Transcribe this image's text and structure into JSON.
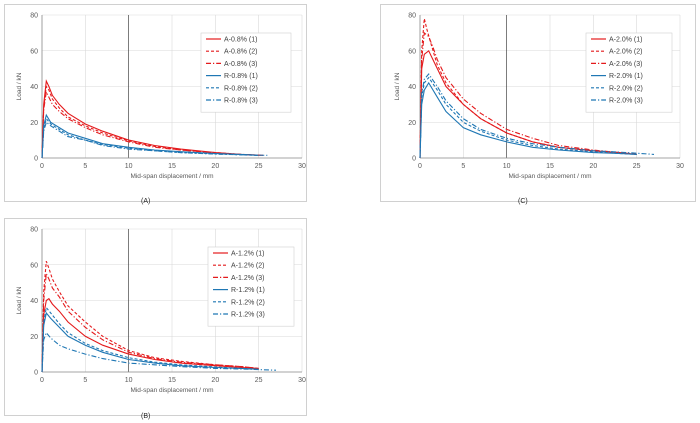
{
  "chart_data": [
    {
      "type": "line",
      "panel_label": "(A)",
      "xlabel": "Mid-span displacement / mm",
      "ylabel": "Load / kN",
      "xlim": [
        0,
        30
      ],
      "ylim": [
        0,
        80
      ],
      "xticks": [
        0,
        5,
        10,
        15,
        20,
        25,
        30
      ],
      "yticks": [
        0,
        20,
        40,
        60,
        80
      ],
      "legend_position": "top-right",
      "series": [
        {
          "name": "A-0.8% (1)",
          "color": "#e41a1c",
          "dash": "solid",
          "x": [
            0,
            0.2,
            0.5,
            0.8,
            1.2,
            2,
            3,
            5,
            7,
            10,
            13,
            16,
            20,
            23,
            25.5
          ],
          "y": [
            0,
            30,
            43,
            40,
            35,
            30,
            25,
            19,
            15,
            10,
            7,
            5,
            3,
            2,
            1.5
          ]
        },
        {
          "name": "A-0.8% (2)",
          "color": "#e41a1c",
          "dash": "dash",
          "x": [
            0,
            0.2,
            0.5,
            0.8,
            1.2,
            2,
            3,
            5,
            7,
            10,
            13,
            16,
            20,
            23,
            25.5
          ],
          "y": [
            0,
            28,
            40,
            38,
            33,
            28,
            23,
            18,
            14,
            9.5,
            6.5,
            4.5,
            3,
            2,
            1.5
          ]
        },
        {
          "name": "A-0.8% (3)",
          "color": "#e41a1c",
          "dash": "dashdot",
          "x": [
            0,
            0.2,
            0.5,
            0.8,
            1.2,
            2,
            3,
            5,
            7,
            10,
            13,
            16,
            20,
            23,
            25
          ],
          "y": [
            0,
            27,
            37,
            34,
            30,
            26,
            22,
            17,
            13,
            9,
            6,
            4.5,
            2.8,
            2,
            1.5
          ]
        },
        {
          "name": "R-0.8% (1)",
          "color": "#1f77b4",
          "dash": "solid",
          "x": [
            0,
            0.2,
            0.5,
            1,
            2,
            3,
            5,
            7,
            10,
            13,
            16,
            20,
            23,
            25
          ],
          "y": [
            0,
            18,
            24,
            20,
            17,
            14,
            11,
            8,
            6,
            4.5,
            3.5,
            2.5,
            2,
            1.5
          ]
        },
        {
          "name": "R-0.8% (2)",
          "color": "#1f77b4",
          "dash": "dash",
          "x": [
            0,
            0.2,
            0.5,
            1,
            2,
            3,
            5,
            7,
            10,
            13,
            16,
            20,
            23,
            25
          ],
          "y": [
            0,
            16,
            22,
            19,
            16,
            13,
            10,
            7.5,
            5.5,
            4,
            3,
            2.3,
            1.8,
            1.4
          ]
        },
        {
          "name": "R-0.8% (3)",
          "color": "#1f77b4",
          "dash": "dashdot",
          "x": [
            0,
            0.2,
            0.5,
            1,
            2,
            3,
            5,
            7,
            10,
            13,
            16,
            20,
            23,
            26
          ],
          "y": [
            0,
            15,
            20,
            18,
            15,
            12,
            10,
            7,
            5,
            4,
            3,
            2.2,
            1.8,
            1.5
          ]
        }
      ]
    },
    {
      "type": "line",
      "panel_label": "(C)",
      "xlabel": "Mid-span displacement / mm",
      "ylabel": "Load / kN",
      "xlim": [
        0,
        30
      ],
      "ylim": [
        0,
        80
      ],
      "xticks": [
        0,
        5,
        10,
        15,
        20,
        25,
        30
      ],
      "yticks": [
        0,
        20,
        40,
        60,
        80
      ],
      "legend_position": "top-right",
      "series": [
        {
          "name": "A-2.0% (1)",
          "color": "#e41a1c",
          "dash": "solid",
          "x": [
            0,
            0.2,
            0.5,
            1,
            1.5,
            2,
            3,
            5,
            7,
            10,
            13,
            16,
            20,
            23,
            25
          ],
          "y": [
            0,
            50,
            58,
            60,
            55,
            50,
            40,
            30,
            22,
            14,
            9,
            6,
            4,
            3,
            2
          ]
        },
        {
          "name": "A-2.0% (2)",
          "color": "#e41a1c",
          "dash": "dash",
          "x": [
            0,
            0.2,
            0.5,
            0.8,
            1.2,
            2,
            3,
            5,
            7,
            10,
            13,
            16,
            20,
            23,
            25
          ],
          "y": [
            0,
            60,
            78,
            72,
            65,
            52,
            42,
            30,
            22,
            14,
            9,
            6,
            4,
            3,
            2
          ]
        },
        {
          "name": "A-2.0% (3)",
          "color": "#e41a1c",
          "dash": "dashdot",
          "x": [
            0,
            0.2,
            0.5,
            1,
            1.5,
            2,
            3,
            5,
            7,
            10,
            13,
            16,
            20,
            23,
            25
          ],
          "y": [
            0,
            55,
            70,
            68,
            62,
            55,
            45,
            33,
            25,
            16,
            11,
            7,
            4.5,
            3,
            2
          ]
        },
        {
          "name": "R-2.0% (1)",
          "color": "#1f77b4",
          "dash": "solid",
          "x": [
            0,
            0.2,
            0.5,
            1,
            2,
            3,
            5,
            7,
            10,
            13,
            16,
            20,
            23,
            25
          ],
          "y": [
            0,
            30,
            38,
            42,
            34,
            26,
            17,
            13,
            9,
            6,
            4.5,
            3,
            2.5,
            2
          ]
        },
        {
          "name": "R-2.0% (2)",
          "color": "#1f77b4",
          "dash": "dash",
          "x": [
            0,
            0.2,
            0.5,
            1,
            2,
            3,
            5,
            7,
            10,
            13,
            16,
            20,
            23,
            25
          ],
          "y": [
            0,
            34,
            42,
            45,
            38,
            30,
            20,
            15,
            10,
            7,
            5,
            3.5,
            2.5,
            2
          ]
        },
        {
          "name": "R-2.0% (3)",
          "color": "#1f77b4",
          "dash": "dashdot",
          "x": [
            0,
            0.2,
            0.5,
            1,
            2,
            3,
            5,
            7,
            10,
            13,
            16,
            20,
            24,
            27
          ],
          "y": [
            0,
            36,
            44,
            47,
            40,
            32,
            22,
            16,
            11,
            8,
            6,
            4,
            3,
            2
          ]
        }
      ]
    },
    {
      "type": "line",
      "panel_label": "(B)",
      "xlabel": "Mid-span displacement / mm",
      "ylabel": "Load / kN",
      "xlim": [
        0,
        30
      ],
      "ylim": [
        0,
        80
      ],
      "xticks": [
        0,
        5,
        10,
        15,
        20,
        25,
        30
      ],
      "yticks": [
        0,
        20,
        40,
        60,
        80
      ],
      "legend_position": "top-right",
      "series": [
        {
          "name": "A-1.2% (1)",
          "color": "#e41a1c",
          "dash": "solid",
          "x": [
            0,
            0.2,
            0.5,
            0.8,
            1.2,
            2,
            3,
            5,
            7,
            10,
            13,
            16,
            20,
            23,
            25
          ],
          "y": [
            0,
            32,
            40,
            41,
            38,
            34,
            28,
            20,
            15,
            10,
            7,
            5,
            3.5,
            2.5,
            2
          ]
        },
        {
          "name": "A-1.2% (2)",
          "color": "#e41a1c",
          "dash": "dash",
          "x": [
            0,
            0.2,
            0.5,
            0.8,
            1.2,
            2,
            3,
            5,
            7,
            10,
            13,
            16,
            20,
            23,
            25
          ],
          "y": [
            0,
            45,
            62,
            58,
            52,
            45,
            37,
            28,
            20,
            12,
            8,
            6,
            4,
            3,
            2
          ]
        },
        {
          "name": "A-1.2% (3)",
          "color": "#e41a1c",
          "dash": "dashdot",
          "x": [
            0,
            0.2,
            0.5,
            0.8,
            1.2,
            2,
            3,
            5,
            7,
            10,
            13,
            16,
            20,
            23,
            25
          ],
          "y": [
            0,
            40,
            55,
            52,
            47,
            42,
            34,
            25,
            18,
            11,
            7.5,
            5.5,
            4,
            3,
            2
          ]
        },
        {
          "name": "R-1.2% (1)",
          "color": "#1f77b4",
          "dash": "solid",
          "x": [
            0,
            0.2,
            0.5,
            1,
            2,
            3,
            5,
            7,
            10,
            13,
            16,
            20,
            23,
            25
          ],
          "y": [
            0,
            26,
            33,
            30,
            25,
            20,
            15,
            11,
            7,
            5,
            3.5,
            2.5,
            2,
            1.5
          ]
        },
        {
          "name": "R-1.2% (2)",
          "color": "#1f77b4",
          "dash": "dash",
          "x": [
            0,
            0.2,
            0.5,
            1,
            2,
            3,
            5,
            7,
            10,
            13,
            16,
            20,
            23,
            25
          ],
          "y": [
            0,
            28,
            36,
            33,
            27,
            22,
            16,
            12,
            8,
            5.5,
            4,
            2.8,
            2,
            1.5
          ]
        },
        {
          "name": "R-1.2% (3)",
          "color": "#1f77b4",
          "dash": "dashdot",
          "x": [
            0,
            0.2,
            0.5,
            1,
            2,
            3,
            5,
            7,
            10,
            13,
            16,
            20,
            24,
            27
          ],
          "y": [
            0,
            18,
            22,
            19,
            15,
            13,
            10,
            7.5,
            5,
            4,
            3,
            2,
            1.5,
            1
          ]
        }
      ]
    }
  ]
}
